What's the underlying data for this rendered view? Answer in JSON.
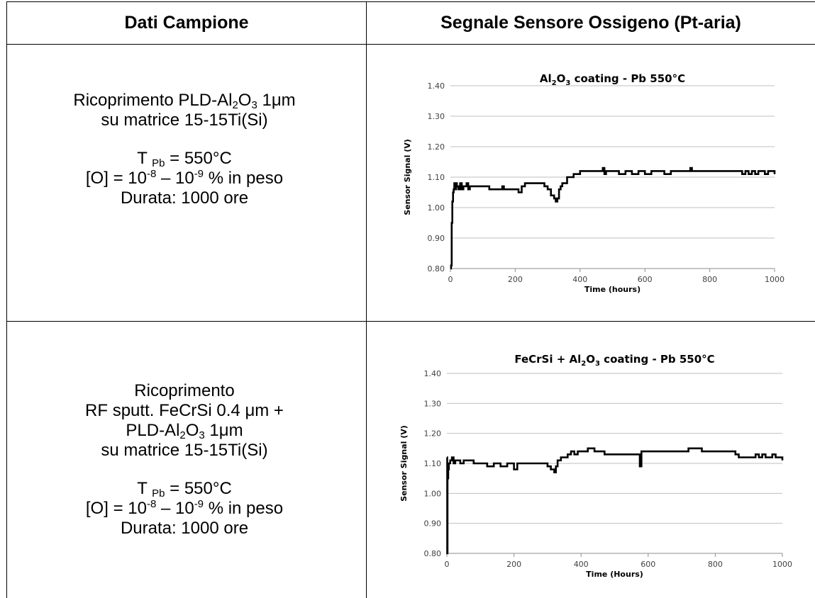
{
  "table": {
    "header_left": "Dati Campione",
    "header_right": "Segnale Sensore Ossigeno (Pt-aria)",
    "rows": [
      {
        "lines": [
          {
            "t": "Ricoprimento PLD-Al",
            "s1": "2",
            "t2": "O",
            "s2": "3",
            "t3": " 1μm"
          },
          {
            "t": "su matrice 15-15Ti(Si)"
          },
          {
            "t": "T ",
            "sub": "Pb",
            "t2": " = 550°C"
          },
          {
            "t": "[O] = 10",
            "sup": "-8",
            "t2": " – 10",
            "sup2": "-9",
            "t3": " % in peso"
          },
          {
            "t": "Durata: 1000 ore"
          }
        ]
      },
      {
        "lines": [
          {
            "t": "Ricoprimento"
          },
          {
            "t": "RF sputt. FeCrSi 0.4 μm +"
          },
          {
            "t": "PLD-Al",
            "s1": "2",
            "t2": "O",
            "s2": "3",
            "t3": " 1μm"
          },
          {
            "t": "su matrice 15-15Ti(Si)"
          },
          {
            "t": "T ",
            "sub": "Pb",
            "t2": " = 550°C"
          },
          {
            "t": "[O] = 10",
            "sup": "-8",
            "t2": " – 10",
            "sup2": "-9",
            "t3": " % in peso"
          },
          {
            "t": "Durata: 1000 ore"
          }
        ]
      }
    ]
  },
  "chart_data": [
    {
      "type": "line",
      "title": "Al2O3 coating - Pb 550°C",
      "title_parts": [
        "Al",
        "2",
        "O",
        "3",
        " coating - Pb 550°C"
      ],
      "xlabel": "Time (hours)",
      "ylabel": "Sensor Signal (V)",
      "xlim": [
        0,
        1000
      ],
      "ylim": [
        0.8,
        1.4
      ],
      "xticks": [
        "0",
        "200",
        "400",
        "600",
        "800",
        "1000"
      ],
      "yticks": [
        "0.80",
        "0.90",
        "1.00",
        "1.10",
        "1.20",
        "1.30",
        "1.40"
      ],
      "grid": "horizontal",
      "line_color": "#000000",
      "series": [
        {
          "x": [
            0,
            2,
            4,
            6,
            8,
            10,
            12,
            15,
            18,
            20,
            25,
            30,
            35,
            40,
            50,
            55,
            60,
            70,
            80,
            100,
            120,
            150,
            160,
            165,
            170,
            200,
            210,
            220,
            230,
            250,
            260,
            280,
            290,
            300,
            310,
            320,
            325,
            330,
            335,
            340,
            345,
            350,
            360,
            370,
            380,
            390,
            400,
            420,
            450,
            470,
            475,
            480,
            500,
            520,
            540,
            560,
            580,
            600,
            620,
            640,
            660,
            680,
            700,
            720,
            740,
            745,
            760,
            800,
            850,
            880,
            900,
            910,
            920,
            930,
            940,
            950,
            960,
            970,
            980,
            990,
            1000
          ],
          "y": [
            0.8,
            0.81,
            0.95,
            1.02,
            1.05,
            1.06,
            1.08,
            1.06,
            1.08,
            1.07,
            1.06,
            1.08,
            1.06,
            1.07,
            1.08,
            1.06,
            1.07,
            1.07,
            1.07,
            1.07,
            1.06,
            1.06,
            1.07,
            1.06,
            1.06,
            1.06,
            1.05,
            1.07,
            1.08,
            1.08,
            1.08,
            1.08,
            1.07,
            1.06,
            1.04,
            1.03,
            1.02,
            1.03,
            1.06,
            1.07,
            1.08,
            1.08,
            1.1,
            1.1,
            1.11,
            1.11,
            1.12,
            1.12,
            1.12,
            1.13,
            1.11,
            1.12,
            1.12,
            1.11,
            1.12,
            1.11,
            1.12,
            1.11,
            1.12,
            1.12,
            1.11,
            1.12,
            1.12,
            1.12,
            1.13,
            1.12,
            1.12,
            1.12,
            1.12,
            1.12,
            1.11,
            1.12,
            1.11,
            1.12,
            1.11,
            1.12,
            1.12,
            1.11,
            1.12,
            1.12,
            1.11
          ]
        }
      ]
    },
    {
      "type": "line",
      "title": "FeCrSi + Al2O3 coating - Pb 550°C",
      "title_parts": [
        "FeCrSi + Al",
        "2",
        "O",
        "3",
        " coating - Pb 550°C"
      ],
      "xlabel": "Time (Hours)",
      "ylabel": "Sensor Signal (V)",
      "xlim": [
        0,
        1000
      ],
      "ylim": [
        0.8,
        1.4
      ],
      "xticks": [
        "0",
        "200",
        "400",
        "600",
        "800",
        "1000"
      ],
      "yticks": [
        "0.80",
        "0.90",
        "1.00",
        "1.10",
        "1.20",
        "1.30",
        "1.40"
      ],
      "grid": "horizontal",
      "line_color": "#000000",
      "series": [
        {
          "x": [
            0,
            1,
            2,
            4,
            6,
            10,
            15,
            20,
            25,
            30,
            40,
            50,
            60,
            80,
            100,
            120,
            140,
            160,
            180,
            200,
            210,
            250,
            300,
            310,
            320,
            325,
            330,
            340,
            350,
            360,
            370,
            380,
            390,
            400,
            420,
            440,
            450,
            470,
            500,
            540,
            570,
            575,
            580,
            600,
            620,
            650,
            700,
            720,
            740,
            760,
            800,
            830,
            850,
            860,
            870,
            880,
            900,
            920,
            930,
            940,
            950,
            960,
            970,
            980,
            990,
            1000
          ],
          "y": [
            1.12,
            0.8,
            1.05,
            1.08,
            1.1,
            1.11,
            1.12,
            1.1,
            1.11,
            1.11,
            1.1,
            1.11,
            1.11,
            1.1,
            1.1,
            1.09,
            1.1,
            1.09,
            1.1,
            1.08,
            1.1,
            1.1,
            1.09,
            1.08,
            1.07,
            1.09,
            1.11,
            1.12,
            1.12,
            1.13,
            1.14,
            1.13,
            1.14,
            1.14,
            1.15,
            1.14,
            1.14,
            1.13,
            1.13,
            1.13,
            1.13,
            1.09,
            1.14,
            1.14,
            1.14,
            1.14,
            1.14,
            1.15,
            1.15,
            1.14,
            1.14,
            1.14,
            1.14,
            1.13,
            1.12,
            1.12,
            1.12,
            1.13,
            1.12,
            1.13,
            1.12,
            1.12,
            1.13,
            1.12,
            1.12,
            1.11
          ]
        }
      ]
    }
  ]
}
